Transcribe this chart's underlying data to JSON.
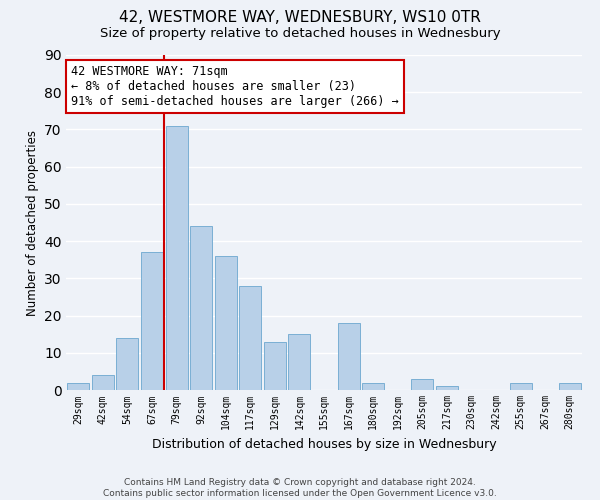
{
  "title": "42, WESTMORE WAY, WEDNESBURY, WS10 0TR",
  "subtitle": "Size of property relative to detached houses in Wednesbury",
  "xlabel": "Distribution of detached houses by size in Wednesbury",
  "ylabel": "Number of detached properties",
  "bar_labels": [
    "29sqm",
    "42sqm",
    "54sqm",
    "67sqm",
    "79sqm",
    "92sqm",
    "104sqm",
    "117sqm",
    "129sqm",
    "142sqm",
    "155sqm",
    "167sqm",
    "180sqm",
    "192sqm",
    "205sqm",
    "217sqm",
    "230sqm",
    "242sqm",
    "255sqm",
    "267sqm",
    "280sqm"
  ],
  "bar_values": [
    2,
    4,
    14,
    37,
    71,
    44,
    36,
    28,
    13,
    15,
    0,
    18,
    2,
    0,
    3,
    1,
    0,
    0,
    2,
    0,
    2
  ],
  "bar_color": "#b8d0e8",
  "bar_edge_color": "#7aafd4",
  "vline_color": "#cc0000",
  "vline_index": 4,
  "annotation_line1": "42 WESTMORE WAY: 71sqm",
  "annotation_line2": "← 8% of detached houses are smaller (23)",
  "annotation_line3": "91% of semi-detached houses are larger (266) →",
  "annotation_box_edge": "#cc0000",
  "annotation_box_face": "#ffffff",
  "ylim": [
    0,
    90
  ],
  "yticks": [
    0,
    10,
    20,
    30,
    40,
    50,
    60,
    70,
    80,
    90
  ],
  "footer_text": "Contains HM Land Registry data © Crown copyright and database right 2024.\nContains public sector information licensed under the Open Government Licence v3.0.",
  "bg_color": "#eef2f8",
  "grid_color": "#ffffff",
  "title_fontsize": 11,
  "subtitle_fontsize": 9.5,
  "annotation_fontsize": 8.5,
  "ylabel_fontsize": 8.5,
  "xlabel_fontsize": 9,
  "footer_fontsize": 6.5
}
